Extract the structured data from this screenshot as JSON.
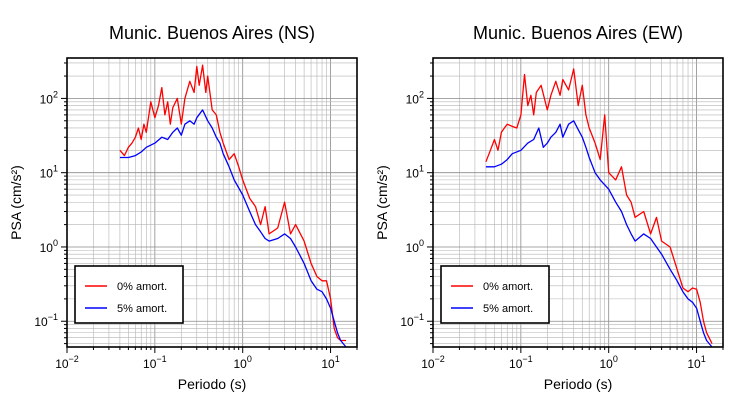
{
  "chart_data": [
    {
      "type": "line",
      "title": "Munic. Buenos Aires (NS)",
      "xlabel": "Periodo (s)",
      "ylabel": "PSA (cm/s²)",
      "xscale": "log",
      "yscale": "log",
      "xlim": [
        0.01,
        20
      ],
      "ylim": [
        0.045,
        350
      ],
      "grid": true,
      "x_ticks": [
        {
          "base": "10",
          "exp": "−2"
        },
        {
          "base": "10",
          "exp": "−1"
        },
        {
          "base": "10",
          "exp": "0"
        },
        {
          "base": "10",
          "exp": "1"
        }
      ],
      "y_ticks": [
        {
          "base": "10",
          "exp": "−1"
        },
        {
          "base": "10",
          "exp": "0"
        },
        {
          "base": "10",
          "exp": "1"
        },
        {
          "base": "10",
          "exp": "2"
        }
      ],
      "legend": {
        "position": "bottom-left",
        "entries": [
          "0% amort.",
          "5% amort."
        ]
      },
      "series": [
        {
          "name": "0% amort.",
          "color": "#ff0000",
          "x": [
            0.04,
            0.045,
            0.05,
            0.055,
            0.06,
            0.065,
            0.07,
            0.075,
            0.08,
            0.09,
            0.1,
            0.11,
            0.12,
            0.13,
            0.14,
            0.15,
            0.16,
            0.18,
            0.2,
            0.22,
            0.25,
            0.28,
            0.3,
            0.32,
            0.35,
            0.38,
            0.4,
            0.45,
            0.5,
            0.55,
            0.6,
            0.7,
            0.8,
            0.9,
            1.0,
            1.2,
            1.4,
            1.6,
            1.8,
            2.0,
            2.5,
            3.0,
            3.5,
            4.0,
            5.0,
            6.0,
            7.0,
            8.0,
            9.0,
            10.0,
            11.0,
            12.0,
            13.0,
            15.0
          ],
          "y": [
            20,
            17,
            22,
            25,
            30,
            40,
            28,
            45,
            35,
            90,
            55,
            80,
            140,
            60,
            90,
            45,
            75,
            100,
            45,
            100,
            170,
            120,
            270,
            150,
            280,
            120,
            200,
            70,
            60,
            35,
            25,
            15,
            18,
            12,
            8,
            4.5,
            3.5,
            2,
            3.5,
            1.5,
            1.8,
            4,
            1.5,
            2,
            1.2,
            0.6,
            0.4,
            0.35,
            0.35,
            0.2,
            0.08,
            0.06,
            0.055,
            0.055
          ]
        },
        {
          "name": "5% amort.",
          "color": "#0000ff",
          "x": [
            0.04,
            0.05,
            0.06,
            0.07,
            0.08,
            0.1,
            0.12,
            0.14,
            0.16,
            0.18,
            0.2,
            0.22,
            0.25,
            0.28,
            0.3,
            0.35,
            0.4,
            0.45,
            0.5,
            0.55,
            0.6,
            0.7,
            0.8,
            1.0,
            1.2,
            1.4,
            1.6,
            1.8,
            2.0,
            2.5,
            3.0,
            3.5,
            4.0,
            5.0,
            6.0,
            7.0,
            8.0,
            9.0,
            10.0,
            11.0,
            12.0,
            13.0,
            15.0
          ],
          "y": [
            16,
            16,
            17,
            19,
            22,
            25,
            30,
            28,
            35,
            40,
            32,
            45,
            50,
            45,
            55,
            70,
            50,
            40,
            30,
            25,
            18,
            12,
            8,
            5,
            3,
            2,
            1.6,
            1.3,
            1.2,
            1.3,
            1.5,
            1.3,
            1.0,
            0.6,
            0.35,
            0.27,
            0.25,
            0.2,
            0.15,
            0.1,
            0.07,
            0.055,
            0.045
          ]
        }
      ]
    },
    {
      "type": "line",
      "title": "Munic. Buenos Aires (EW)",
      "xlabel": "Periodo (s)",
      "ylabel": "PSA (cm/s²)",
      "xscale": "log",
      "yscale": "log",
      "xlim": [
        0.01,
        20
      ],
      "ylim": [
        0.045,
        350
      ],
      "grid": true,
      "x_ticks": [
        {
          "base": "10",
          "exp": "−2"
        },
        {
          "base": "10",
          "exp": "−1"
        },
        {
          "base": "10",
          "exp": "0"
        },
        {
          "base": "10",
          "exp": "1"
        }
      ],
      "y_ticks": [
        {
          "base": "10",
          "exp": "−1"
        },
        {
          "base": "10",
          "exp": "0"
        },
        {
          "base": "10",
          "exp": "1"
        },
        {
          "base": "10",
          "exp": "2"
        }
      ],
      "legend": {
        "position": "bottom-left",
        "entries": [
          "0% amort.",
          "5% amort."
        ]
      },
      "series": [
        {
          "name": "0% amort.",
          "color": "#ff0000",
          "x": [
            0.04,
            0.045,
            0.05,
            0.055,
            0.06,
            0.065,
            0.07,
            0.08,
            0.09,
            0.1,
            0.11,
            0.12,
            0.13,
            0.14,
            0.15,
            0.17,
            0.2,
            0.22,
            0.25,
            0.28,
            0.3,
            0.35,
            0.4,
            0.45,
            0.5,
            0.55,
            0.6,
            0.7,
            0.8,
            0.9,
            1.0,
            1.2,
            1.4,
            1.6,
            1.8,
            2.0,
            2.5,
            3.0,
            3.5,
            4.0,
            5.0,
            6.0,
            7.0,
            8.0,
            9.0,
            10.0,
            11.0,
            12.0,
            13.0,
            15.0
          ],
          "y": [
            14,
            20,
            28,
            20,
            35,
            40,
            45,
            42,
            40,
            60,
            210,
            80,
            110,
            60,
            120,
            150,
            70,
            110,
            170,
            110,
            180,
            130,
            250,
            80,
            150,
            60,
            40,
            25,
            15,
            60,
            10,
            8,
            12,
            5,
            4,
            2.5,
            3,
            1.5,
            2.5,
            1.2,
            1.0,
            0.5,
            0.28,
            0.25,
            0.28,
            0.27,
            0.18,
            0.1,
            0.07,
            0.05
          ]
        },
        {
          "name": "5% amort.",
          "color": "#0000ff",
          "x": [
            0.04,
            0.05,
            0.06,
            0.07,
            0.08,
            0.1,
            0.12,
            0.14,
            0.16,
            0.18,
            0.2,
            0.22,
            0.25,
            0.28,
            0.3,
            0.35,
            0.4,
            0.45,
            0.5,
            0.55,
            0.6,
            0.7,
            0.8,
            1.0,
            1.2,
            1.4,
            1.6,
            1.8,
            2.0,
            2.5,
            3.0,
            3.5,
            4.0,
            5.0,
            6.0,
            7.0,
            8.0,
            9.0,
            10.0,
            11.0,
            12.0,
            13.0,
            15.0
          ],
          "y": [
            12,
            12,
            13,
            15,
            18,
            20,
            25,
            28,
            40,
            22,
            25,
            30,
            35,
            45,
            30,
            45,
            50,
            38,
            30,
            22,
            16,
            10,
            8,
            6,
            4,
            3,
            2,
            1.5,
            1.2,
            1.5,
            1.3,
            1.0,
            0.8,
            0.5,
            0.35,
            0.25,
            0.2,
            0.18,
            0.15,
            0.1,
            0.07,
            0.055,
            0.045
          ]
        }
      ]
    }
  ]
}
